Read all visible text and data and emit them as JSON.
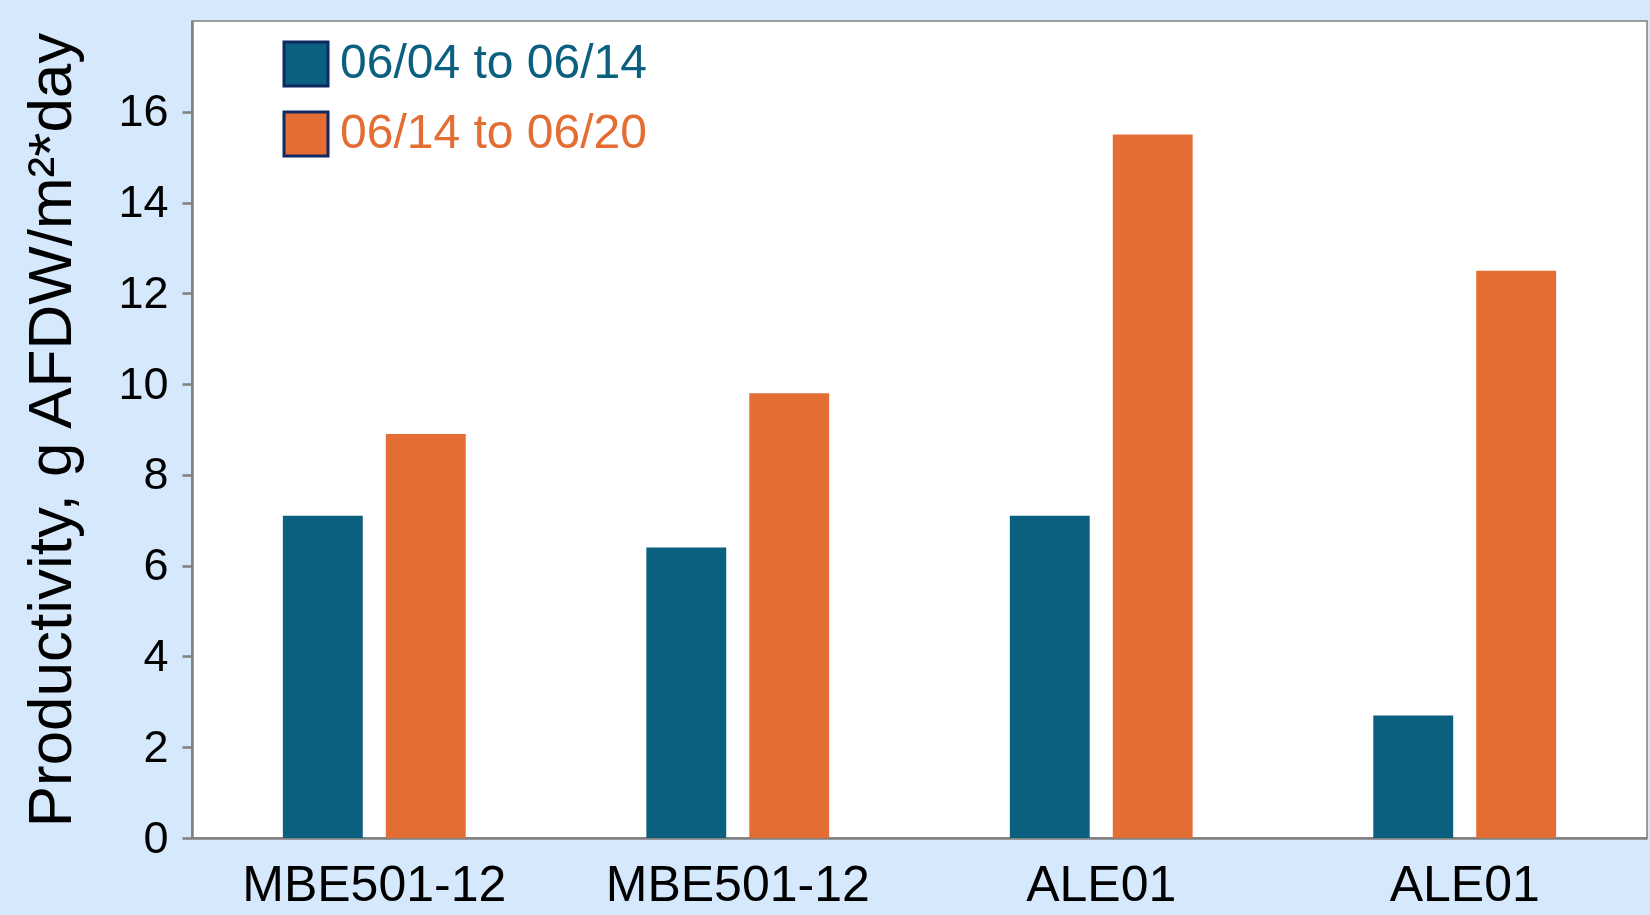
{
  "chart_data": {
    "type": "bar",
    "ylabel": "Productivity, g AFDW/m²*day",
    "categories": [
      "MBE501-12",
      "MBE501-12",
      "ALE01",
      "ALE01"
    ],
    "series": [
      {
        "name": "06/04 to 06/14",
        "color": "#0b5f7f",
        "values": [
          7.1,
          6.4,
          7.1,
          2.7
        ]
      },
      {
        "name": "06/14 to 06/20",
        "color": "#e46d33",
        "values": [
          8.9,
          9.8,
          15.5,
          12.5
        ]
      }
    ],
    "ylim": [
      0,
      18
    ],
    "yticks": [
      0,
      2,
      4,
      6,
      8,
      10,
      12,
      14,
      16
    ],
    "legend": "top left"
  }
}
